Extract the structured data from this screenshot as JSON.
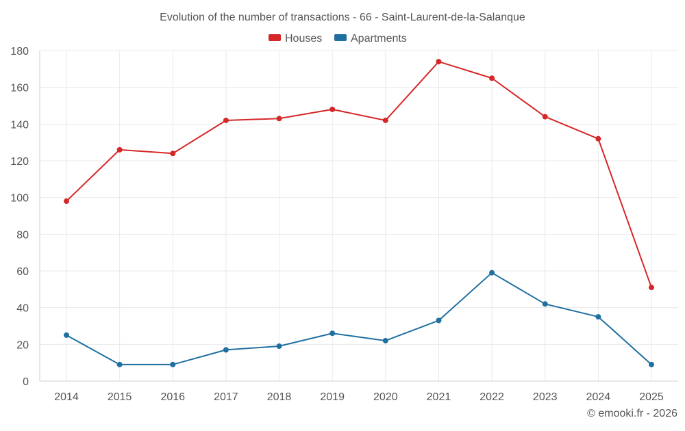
{
  "chart_data": {
    "type": "line",
    "title": "Evolution of the number of transactions - 66 - Saint-Laurent-de-la-Salanque",
    "categories": [
      "2014",
      "2015",
      "2016",
      "2017",
      "2018",
      "2019",
      "2020",
      "2021",
      "2022",
      "2023",
      "2024",
      "2025"
    ],
    "series": [
      {
        "name": "Houses",
        "color": "#d62728",
        "values": [
          98,
          126,
          124,
          142,
          143,
          148,
          142,
          174,
          165,
          144,
          132,
          51
        ]
      },
      {
        "name": "Apartments",
        "color": "#1f6fa0",
        "values": [
          25,
          9,
          9,
          17,
          19,
          26,
          22,
          33,
          59,
          42,
          35,
          9
        ]
      }
    ],
    "ylim": [
      0,
      180
    ],
    "yticks": [
      "0",
      "20",
      "40",
      "60",
      "80",
      "100",
      "120",
      "140",
      "160",
      "180"
    ],
    "xlabel": "",
    "ylabel": "",
    "grid": true,
    "legend": "top-center"
  },
  "credit": "© emooki.fr - 2026"
}
